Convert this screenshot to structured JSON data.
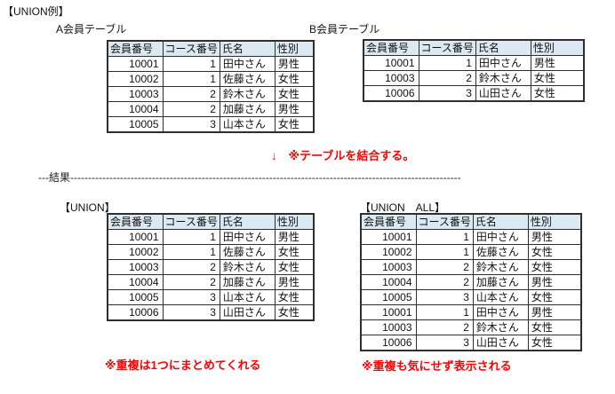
{
  "page": {
    "title": "【UNION例】",
    "join_note": "↓　※テーブルを結合する。",
    "divider": "---結果--------------------------------------------------------------------------------------------------------------",
    "colors": {
      "header_bg": "#dbeaf2",
      "border": "#2e2e2e",
      "note_red": "#ff0000"
    }
  },
  "columns": [
    "会員番号",
    "コース番号",
    "氏名",
    "性別"
  ],
  "tables": {
    "a": {
      "label": "A会員テーブル",
      "rows": [
        [
          "10001",
          "1",
          "田中さん",
          "男性"
        ],
        [
          "10002",
          "1",
          "佐藤さん",
          "女性"
        ],
        [
          "10003",
          "2",
          "鈴木さん",
          "女性"
        ],
        [
          "10004",
          "2",
          "加藤さん",
          "男性"
        ],
        [
          "10005",
          "3",
          "山本さん",
          "女性"
        ]
      ]
    },
    "b": {
      "label": "B会員テーブル",
      "rows": [
        [
          "10001",
          "1",
          "田中さん",
          "男性"
        ],
        [
          "10003",
          "2",
          "鈴木さん",
          "女性"
        ],
        [
          "10006",
          "3",
          "山田さん",
          "女性"
        ]
      ]
    },
    "union": {
      "label": "【UNION】",
      "note": "※重複は1つにまとめてくれる",
      "rows": [
        [
          "10001",
          "1",
          "田中さん",
          "男性"
        ],
        [
          "10002",
          "1",
          "佐藤さん",
          "女性"
        ],
        [
          "10003",
          "2",
          "鈴木さん",
          "女性"
        ],
        [
          "10004",
          "2",
          "加藤さん",
          "男性"
        ],
        [
          "10005",
          "3",
          "山本さん",
          "女性"
        ],
        [
          "10006",
          "3",
          "山田さん",
          "女性"
        ]
      ]
    },
    "union_all": {
      "label": "【UNION　ALL】",
      "note": "※重複も気にせず表示される",
      "rows": [
        [
          "10001",
          "1",
          "田中さん",
          "男性"
        ],
        [
          "10002",
          "1",
          "佐藤さん",
          "女性"
        ],
        [
          "10003",
          "2",
          "鈴木さん",
          "女性"
        ],
        [
          "10004",
          "2",
          "加藤さん",
          "男性"
        ],
        [
          "10005",
          "3",
          "山本さん",
          "女性"
        ],
        [
          "10001",
          "1",
          "田中さん",
          "男性"
        ],
        [
          "10003",
          "2",
          "鈴木さん",
          "女性"
        ],
        [
          "10006",
          "3",
          "山田さん",
          "女性"
        ]
      ]
    }
  }
}
